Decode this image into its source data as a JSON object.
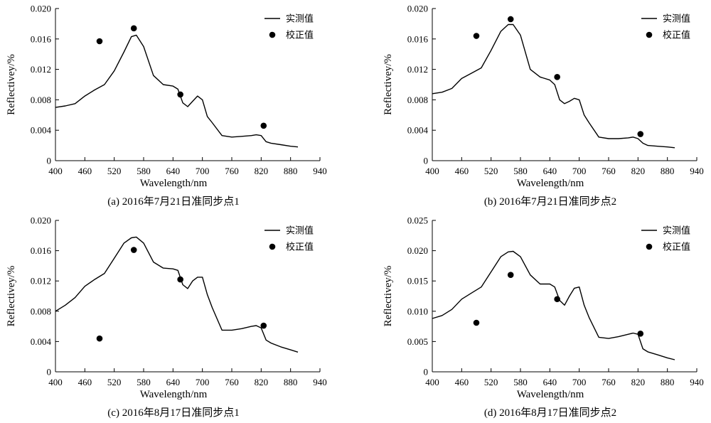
{
  "chart_data": [
    {
      "type": "line",
      "caption": "(a) 2016年7月21日准同步点1",
      "xlabel": "Wavelength/nm",
      "ylabel": "Reflectivey/%",
      "xlim": [
        400,
        940
      ],
      "ylim": [
        0,
        0.02
      ],
      "xticks": [
        "400",
        "460",
        "520",
        "580",
        "640",
        "700",
        "760",
        "820",
        "880",
        "940"
      ],
      "yticks": [
        "0",
        "0.004",
        "0.008",
        "0.012",
        "0.016",
        "0.020"
      ],
      "legend_position": "top-right",
      "series": [
        {
          "name": "实测值",
          "kind": "line",
          "x": [
            400,
            420,
            440,
            460,
            480,
            500,
            520,
            540,
            555,
            565,
            580,
            600,
            620,
            640,
            650,
            660,
            670,
            680,
            690,
            700,
            710,
            720,
            740,
            760,
            780,
            800,
            810,
            820,
            830,
            840,
            860,
            880,
            895
          ],
          "y": [
            0.007,
            0.0072,
            0.0075,
            0.0085,
            0.0093,
            0.01,
            0.0118,
            0.0143,
            0.0163,
            0.0165,
            0.015,
            0.0112,
            0.01,
            0.0098,
            0.0094,
            0.0076,
            0.0071,
            0.0078,
            0.0085,
            0.008,
            0.0058,
            0.005,
            0.0033,
            0.0031,
            0.0032,
            0.0033,
            0.0034,
            0.0033,
            0.0025,
            0.0023,
            0.0021,
            0.0019,
            0.0018
          ]
        },
        {
          "name": "校正值",
          "kind": "scatter",
          "x": [
            490,
            560,
            655,
            825
          ],
          "y": [
            0.0157,
            0.0174,
            0.0087,
            0.0046
          ]
        }
      ]
    },
    {
      "type": "line",
      "caption": "(b) 2016年7月21日准同步点2",
      "xlabel": "Wavelength/nm",
      "ylabel": "Reflectivey/%",
      "xlim": [
        400,
        940
      ],
      "ylim": [
        0,
        0.02
      ],
      "xticks": [
        "400",
        "460",
        "520",
        "580",
        "640",
        "700",
        "760",
        "820",
        "880",
        "940"
      ],
      "yticks": [
        "0",
        "0.004",
        "0.008",
        "0.012",
        "0.016",
        "0.020"
      ],
      "legend_position": "top-right",
      "series": [
        {
          "name": "实测值",
          "kind": "line",
          "x": [
            400,
            420,
            440,
            460,
            480,
            500,
            520,
            540,
            555,
            565,
            580,
            600,
            620,
            640,
            650,
            660,
            670,
            680,
            690,
            700,
            710,
            720,
            740,
            760,
            780,
            800,
            810,
            820,
            830,
            840,
            860,
            880,
            895
          ],
          "y": [
            0.0088,
            0.009,
            0.0095,
            0.0108,
            0.0115,
            0.0122,
            0.0145,
            0.017,
            0.0179,
            0.0179,
            0.0165,
            0.012,
            0.011,
            0.0106,
            0.01,
            0.008,
            0.0075,
            0.0078,
            0.0082,
            0.008,
            0.006,
            0.005,
            0.0031,
            0.0029,
            0.0029,
            0.003,
            0.0031,
            0.0029,
            0.0023,
            0.002,
            0.0019,
            0.0018,
            0.0017
          ]
        },
        {
          "name": "校正值",
          "kind": "scatter",
          "x": [
            490,
            560,
            655,
            825
          ],
          "y": [
            0.0164,
            0.0186,
            0.011,
            0.0035
          ]
        }
      ]
    },
    {
      "type": "line",
      "caption": "(c) 2016年8月17日准同步点1",
      "xlabel": "Wavelength/nm",
      "ylabel": "Reflectivey/%",
      "xlim": [
        400,
        940
      ],
      "ylim": [
        0,
        0.02
      ],
      "xticks": [
        "400",
        "460",
        "520",
        "580",
        "640",
        "700",
        "760",
        "820",
        "880",
        "940"
      ],
      "yticks": [
        "0",
        "0.004",
        "0.008",
        "0.012",
        "0.016",
        "0.020"
      ],
      "legend_position": "top-right",
      "series": [
        {
          "name": "实测值",
          "kind": "line",
          "x": [
            400,
            420,
            440,
            460,
            480,
            500,
            520,
            540,
            555,
            565,
            580,
            600,
            620,
            640,
            650,
            660,
            670,
            680,
            690,
            700,
            710,
            720,
            740,
            760,
            780,
            800,
            810,
            820,
            830,
            840,
            860,
            880,
            895
          ],
          "y": [
            0.008,
            0.0088,
            0.0098,
            0.0113,
            0.0122,
            0.013,
            0.015,
            0.017,
            0.0177,
            0.0178,
            0.017,
            0.0145,
            0.0137,
            0.0136,
            0.0134,
            0.0115,
            0.011,
            0.012,
            0.0125,
            0.0125,
            0.0102,
            0.0085,
            0.0055,
            0.0055,
            0.0057,
            0.006,
            0.0061,
            0.0058,
            0.0042,
            0.0038,
            0.0033,
            0.0029,
            0.0026
          ]
        },
        {
          "name": "校正值",
          "kind": "scatter",
          "x": [
            490,
            560,
            655,
            825
          ],
          "y": [
            0.0044,
            0.0161,
            0.0122,
            0.0061
          ]
        }
      ]
    },
    {
      "type": "line",
      "caption": "(d) 2016年8月17日准同步点2",
      "xlabel": "Wavelength/nm",
      "ylabel": "Reflectivey/%",
      "xlim": [
        400,
        940
      ],
      "ylim": [
        0,
        0.025
      ],
      "xticks": [
        "400",
        "460",
        "520",
        "580",
        "640",
        "700",
        "760",
        "820",
        "880",
        "940"
      ],
      "yticks": [
        "0",
        "0.005",
        "0.010",
        "0.015",
        "0.020",
        "0.025"
      ],
      "legend_position": "top-right",
      "series": [
        {
          "name": "实测值",
          "kind": "line",
          "x": [
            400,
            420,
            440,
            460,
            480,
            500,
            520,
            540,
            555,
            565,
            580,
            600,
            620,
            640,
            650,
            660,
            670,
            680,
            690,
            700,
            710,
            720,
            740,
            760,
            780,
            800,
            810,
            820,
            830,
            840,
            860,
            880,
            895
          ],
          "y": [
            0.0088,
            0.0093,
            0.0103,
            0.012,
            0.013,
            0.014,
            0.0165,
            0.019,
            0.0198,
            0.0199,
            0.019,
            0.016,
            0.0145,
            0.0145,
            0.014,
            0.0118,
            0.011,
            0.0125,
            0.0138,
            0.014,
            0.011,
            0.009,
            0.0057,
            0.0055,
            0.0058,
            0.0062,
            0.0064,
            0.0062,
            0.0038,
            0.0033,
            0.0028,
            0.0023,
            0.002
          ]
        },
        {
          "name": "校正值",
          "kind": "scatter",
          "x": [
            490,
            560,
            655,
            825
          ],
          "y": [
            0.0081,
            0.016,
            0.012,
            0.0063
          ]
        }
      ]
    }
  ]
}
